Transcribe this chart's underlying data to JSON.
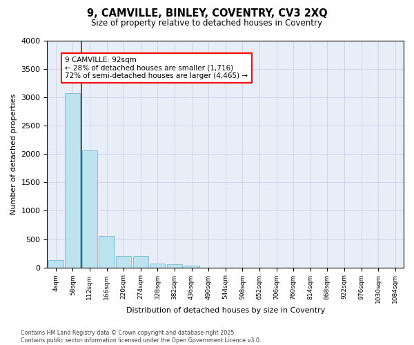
{
  "title_line1": "9, CAMVILLE, BINLEY, COVENTRY, CV3 2XQ",
  "title_line2": "Size of property relative to detached houses in Coventry",
  "xlabel": "Distribution of detached houses by size in Coventry",
  "ylabel": "Number of detached properties",
  "bar_color": "#bee3f0",
  "bar_edgecolor": "#7ab8d4",
  "background_color": "#e8eef8",
  "vline_color": "#cc0000",
  "vline_x_idx": 1,
  "ylim": [
    0,
    4000
  ],
  "yticks": [
    0,
    500,
    1000,
    1500,
    2000,
    2500,
    3000,
    3500,
    4000
  ],
  "bins": [
    "4sqm",
    "58sqm",
    "112sqm",
    "166sqm",
    "220sqm",
    "274sqm",
    "328sqm",
    "382sqm",
    "436sqm",
    "490sqm",
    "544sqm",
    "598sqm",
    "652sqm",
    "706sqm",
    "760sqm",
    "814sqm",
    "868sqm",
    "922sqm",
    "976sqm",
    "1030sqm",
    "1084sqm"
  ],
  "values": [
    130,
    3080,
    2060,
    560,
    200,
    200,
    70,
    55,
    30,
    0,
    0,
    0,
    0,
    0,
    0,
    0,
    0,
    0,
    0,
    0,
    0
  ],
  "annotation_title": "9 CAMVILLE: 92sqm",
  "annotation_line2": "← 28% of detached houses are smaller (1,716)",
  "annotation_line3": "72% of semi-detached houses are larger (4,465) →",
  "footer_line1": "Contains HM Land Registry data © Crown copyright and database right 2025.",
  "footer_line2": "Contains public sector information licensed under the Open Government Licence v3.0.",
  "grid_color": "#c5cde8"
}
